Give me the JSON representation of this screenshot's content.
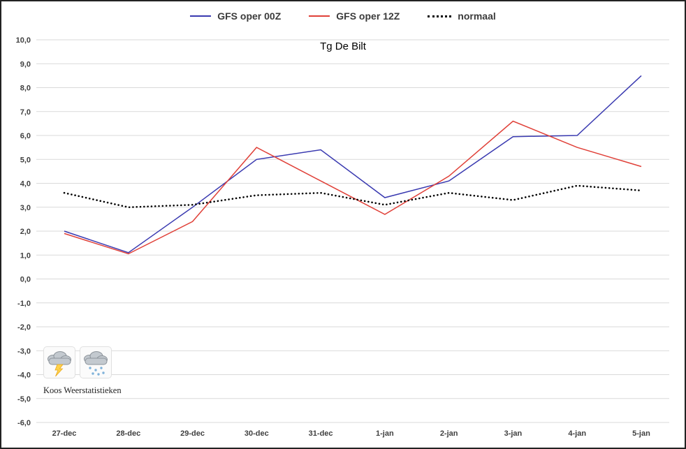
{
  "chart_data": {
    "type": "line",
    "title": "Tg De Bilt",
    "xlabel": "",
    "ylabel": "",
    "grid": true,
    "legend_position": "top",
    "ylim": [
      -6,
      10
    ],
    "y_step": 1,
    "y_tick_labels": [
      "10,0",
      "9,0",
      "8,0",
      "7,0",
      "6,0",
      "5,0",
      "4,0",
      "3,0",
      "2,0",
      "1,0",
      "0,0",
      "-1,0",
      "-2,0",
      "-3,0",
      "-4,0",
      "-5,0",
      "-6,0"
    ],
    "categories": [
      "27-dec",
      "28-dec",
      "29-dec",
      "30-dec",
      "31-dec",
      "1-jan",
      "2-jan",
      "3-jan",
      "4-jan",
      "5-jan"
    ],
    "series": [
      {
        "name": "GFS oper 00Z",
        "color": "#3939b0",
        "width": 1.5,
        "dash": "",
        "values": [
          2.0,
          1.1,
          3.0,
          5.0,
          5.4,
          3.4,
          4.1,
          5.95,
          6.0,
          8.5
        ]
      },
      {
        "name": "GFS oper 12Z",
        "color": "#e04038",
        "width": 1.5,
        "dash": "",
        "values": [
          1.9,
          1.05,
          2.4,
          5.5,
          4.1,
          2.7,
          4.3,
          6.6,
          5.5,
          4.7
        ]
      },
      {
        "name": "normaal",
        "color": "#000000",
        "width": 2.6,
        "dash": "0.1 5.2",
        "values": [
          3.6,
          3.0,
          3.1,
          3.5,
          3.6,
          3.1,
          3.6,
          3.3,
          3.9,
          3.7
        ]
      }
    ]
  },
  "watermark": {
    "label": "Koos Weerstatistieken",
    "icons": [
      "storm-cloud-icon",
      "snow-cloud-icon"
    ]
  }
}
